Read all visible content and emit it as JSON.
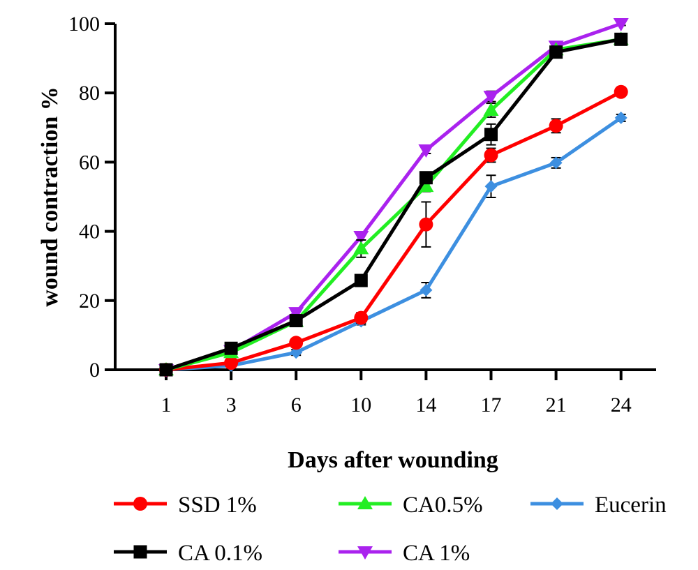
{
  "chart_data": {
    "type": "line",
    "xlabel": "Days after wounding",
    "ylabel": "wound contraction %",
    "x": [
      "1",
      "3",
      "6",
      "10",
      "14",
      "17",
      "21",
      "24"
    ],
    "ylim": [
      0,
      100
    ],
    "yticks": [
      "0",
      "20",
      "40",
      "60",
      "80",
      "100"
    ],
    "grid": false,
    "legend_position": "bottom",
    "series": [
      {
        "name": "SSD 1%",
        "marker": "circle",
        "color": "#ff0000",
        "values": [
          0,
          2,
          7.8,
          15,
          42,
          62,
          70.5,
          80.3
        ],
        "errors": [
          0,
          0.8,
          0.8,
          1.5,
          6.5,
          2.0,
          2.0,
          1.0
        ]
      },
      {
        "name": "CA0.5%",
        "marker": "triangle-up",
        "color": "#22ee22",
        "values": [
          0,
          5,
          14,
          35,
          53,
          75,
          92.5,
          95.5
        ],
        "errors": [
          0,
          0.8,
          0.8,
          2.5,
          1.5,
          2.0,
          1.0,
          0.8
        ]
      },
      {
        "name": "Eucerin",
        "marker": "diamond",
        "color": "#3d8fe0",
        "values": [
          0,
          1.2,
          5,
          14,
          23,
          53,
          59.8,
          72.8
        ],
        "errors": [
          0,
          0.5,
          0.8,
          1.0,
          2.2,
          3.2,
          1.5,
          1.0
        ]
      },
      {
        "name": "CA 0.1%",
        "marker": "square",
        "color": "#000000",
        "values": [
          0,
          6.2,
          14.2,
          25.8,
          55.5,
          68,
          91.8,
          95.5
        ],
        "errors": [
          0,
          0.8,
          1.0,
          1.2,
          1.5,
          3.0,
          1.0,
          0.8
        ]
      },
      {
        "name": "CA 1%",
        "marker": "triangle-down",
        "color": "#aa22ee",
        "values": [
          0,
          5.5,
          16.5,
          38.5,
          63.5,
          79,
          93.5,
          100
        ],
        "errors": [
          0,
          0.5,
          0.8,
          1.0,
          1.0,
          1.5,
          0.8,
          0.5
        ]
      }
    ]
  }
}
